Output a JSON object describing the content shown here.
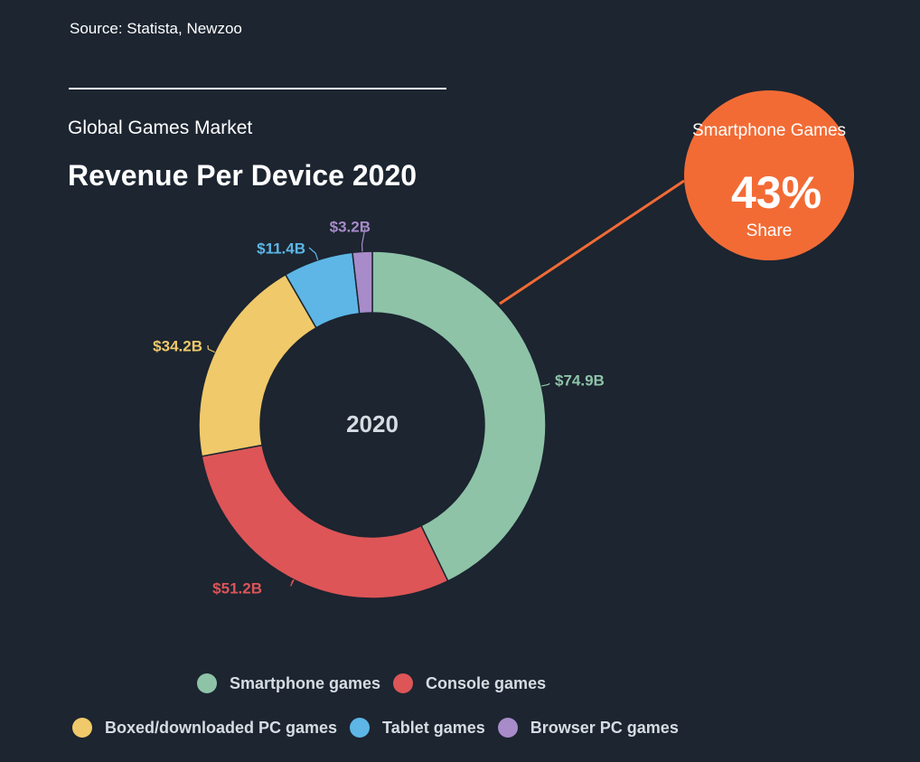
{
  "header": {
    "source": "Source: Statista, Newzoo",
    "subtitle": "Global Games Market",
    "title": "Revenue Per Device 2020"
  },
  "callout": {
    "label_top": "Smartphone Games",
    "value": "43%",
    "label_bottom": "Share",
    "color": "#f26b35"
  },
  "chart_data": {
    "type": "pie",
    "donut": true,
    "center_label": "2020",
    "unit": "$B",
    "slices": [
      {
        "name": "Smartphone games",
        "value": 74.9,
        "label": "$74.9B",
        "color": "#8ec3a8"
      },
      {
        "name": "Console games",
        "value": 51.2,
        "label": "$51.2B",
        "color": "#dd5557"
      },
      {
        "name": "Boxed/downloaded PC games",
        "value": 34.2,
        "label": "$34.2B",
        "color": "#f0c96a"
      },
      {
        "name": "Tablet games",
        "value": 11.4,
        "label": "$11.4B",
        "color": "#5db6e6"
      },
      {
        "name": "Browser PC games",
        "value": 3.2,
        "label": "$3.2B",
        "color": "#a88bc9"
      }
    ],
    "legend": [
      "Smartphone games",
      "Console games",
      "Boxed/downloaded PC games",
      "Tablet games",
      "Browser PC games"
    ],
    "legend_position": "bottom"
  }
}
